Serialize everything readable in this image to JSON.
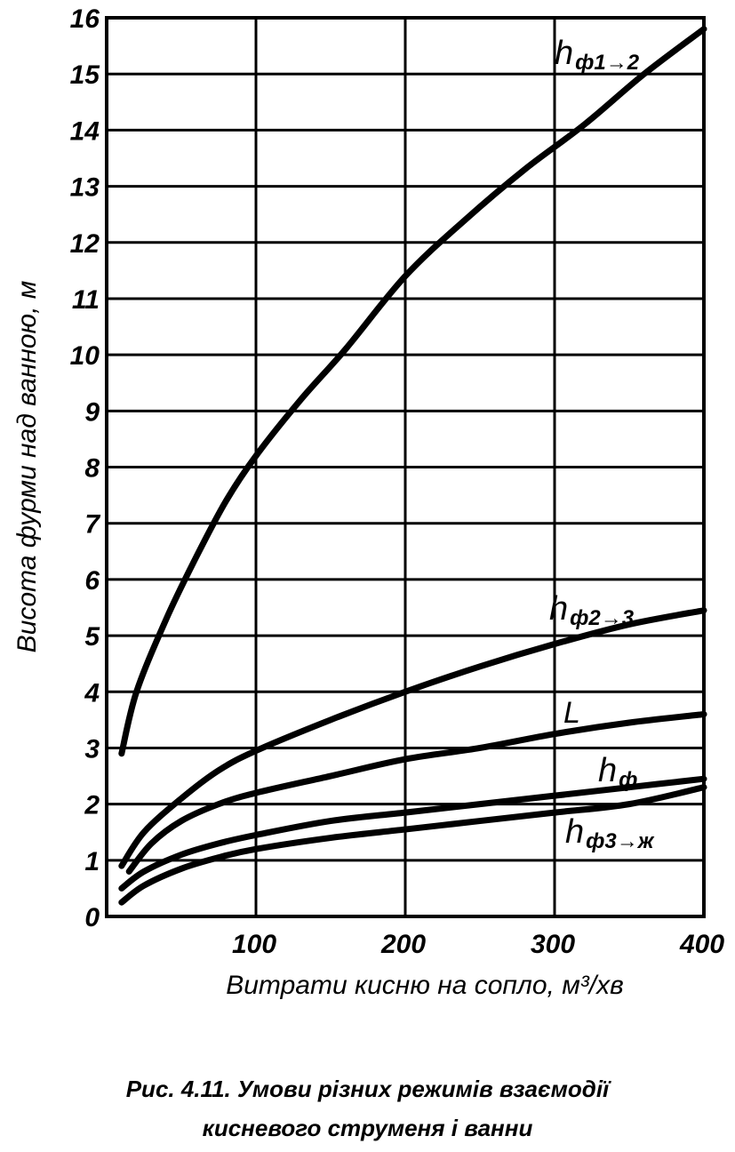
{
  "chart_data": {
    "type": "line",
    "xlabel": "Витрати кисню на сопло,  м³/хв",
    "ylabel": "Висота фурми над ванною,  м",
    "xlim": [
      0,
      400
    ],
    "ylim": [
      0,
      16
    ],
    "x_ticks": [
      "100",
      "200",
      "300",
      "400"
    ],
    "y_ticks": [
      "0",
      "1",
      "2",
      "3",
      "4",
      "5",
      "6",
      "7",
      "8",
      "9",
      "10",
      "11",
      "12",
      "13",
      "14",
      "15",
      "16"
    ],
    "grid": true,
    "series": [
      {
        "name": "hф1→2",
        "label_main": "h",
        "label_sub": "ф1→2",
        "x": [
          10,
          20,
          40,
          60,
          80,
          100,
          130,
          160,
          200,
          240,
          280,
          320,
          360,
          400
        ],
        "y": [
          2.9,
          4.0,
          5.3,
          6.4,
          7.4,
          8.2,
          9.2,
          10.1,
          11.4,
          12.4,
          13.3,
          14.1,
          15.0,
          15.8
        ]
      },
      {
        "name": "hф2→3",
        "label_main": "h",
        "label_sub": "ф2→3",
        "x": [
          10,
          25,
          50,
          75,
          100,
          150,
          200,
          250,
          300,
          350,
          400
        ],
        "y": [
          0.9,
          1.5,
          2.1,
          2.6,
          2.95,
          3.5,
          4.0,
          4.45,
          4.85,
          5.2,
          5.45
        ]
      },
      {
        "name": "L",
        "label_main": "L",
        "label_sub": "",
        "x": [
          15,
          30,
          50,
          75,
          100,
          150,
          200,
          250,
          300,
          350,
          400
        ],
        "y": [
          0.8,
          1.3,
          1.7,
          2.0,
          2.2,
          2.5,
          2.8,
          3.0,
          3.25,
          3.45,
          3.6
        ]
      },
      {
        "name": "hф",
        "label_main": "h",
        "label_sub": "ф",
        "x": [
          10,
          25,
          50,
          75,
          100,
          150,
          200,
          250,
          300,
          350,
          400
        ],
        "y": [
          0.5,
          0.8,
          1.1,
          1.3,
          1.45,
          1.7,
          1.85,
          2.0,
          2.15,
          2.3,
          2.45
        ]
      },
      {
        "name": "hф3→ж",
        "label_main": "h",
        "label_sub": "ф3→ж",
        "x": [
          10,
          25,
          50,
          75,
          100,
          150,
          200,
          250,
          300,
          350,
          400
        ],
        "y": [
          0.25,
          0.55,
          0.85,
          1.05,
          1.2,
          1.4,
          1.55,
          1.7,
          1.85,
          2.0,
          2.3
        ]
      }
    ]
  },
  "caption": {
    "line1": "Рис. 4.11. Умови різних режимів взаємодії",
    "line2": "кисневого струменя і ванни"
  }
}
